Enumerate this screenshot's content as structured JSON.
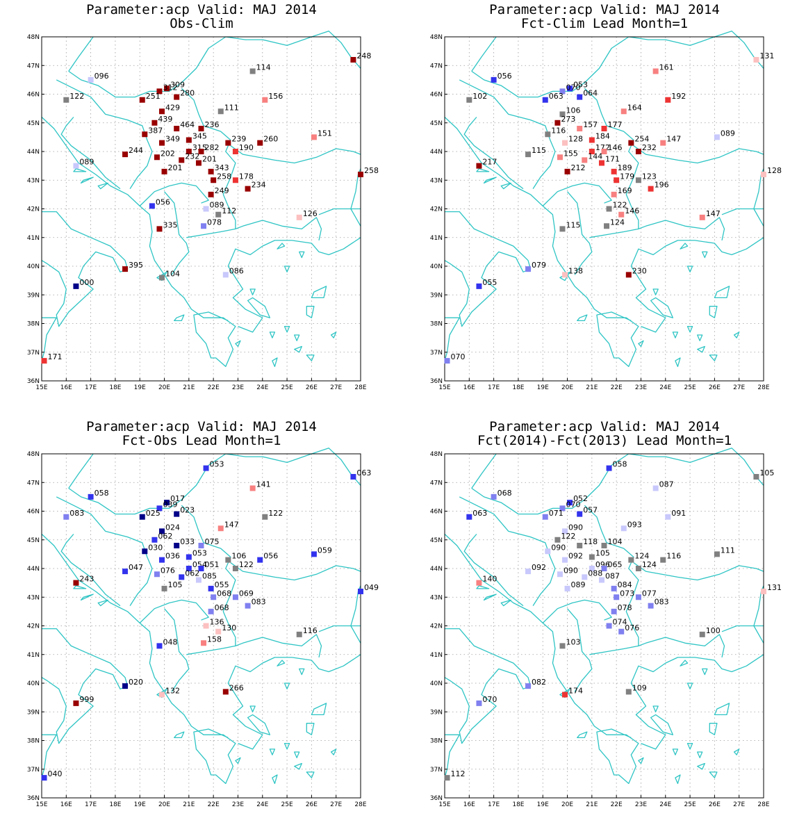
{
  "lon_ticks": [
    "15E",
    "16E",
    "17E",
    "18E",
    "19E",
    "20E",
    "21E",
    "22E",
    "23E",
    "24E",
    "25E",
    "26E",
    "27E",
    "28E"
  ],
  "lat_ticks": [
    "36N",
    "37N",
    "38N",
    "39N",
    "40N",
    "41N",
    "42N",
    "43N",
    "44N",
    "45N",
    "46N",
    "47N",
    "48N"
  ],
  "colors": {
    "coast": "#2ec4c4",
    "grid": "#9a9a9a",
    "dark_red": "#990000",
    "red": "#ee3333",
    "pink": "#f89898",
    "light_pink": "#fcc8c8",
    "gray": "#808080",
    "light_blue": "#c8c8fc",
    "mid_blue": "#8080f0",
    "blue": "#3333ee",
    "dark_blue": "#000088"
  },
  "panels": [
    {
      "title1": "Parameter:acp Valid: MAJ 2014",
      "title2": "Obs-Clim",
      "stations": [
        {
          "lon": 27.7,
          "lat": 47.2,
          "label": "248"
        },
        {
          "lon": 23.6,
          "lat": 46.8,
          "label": "114"
        },
        {
          "lon": 17.0,
          "lat": 46.5,
          "label": "096"
        },
        {
          "lon": 20.1,
          "lat": 46.2,
          "label": "309"
        },
        {
          "lon": 19.8,
          "lat": 46.1,
          "label": "312"
        },
        {
          "lon": 19.1,
          "lat": 45.8,
          "label": "251"
        },
        {
          "lon": 20.5,
          "lat": 45.9,
          "label": "280"
        },
        {
          "lon": 16.0,
          "lat": 45.8,
          "label": "122"
        },
        {
          "lon": 24.1,
          "lat": 45.8,
          "label": "156"
        },
        {
          "lon": 22.3,
          "lat": 45.4,
          "label": "111"
        },
        {
          "lon": 19.9,
          "lat": 45.4,
          "label": "429"
        },
        {
          "lon": 19.6,
          "lat": 45.0,
          "label": "439"
        },
        {
          "lon": 20.5,
          "lat": 44.8,
          "label": "464"
        },
        {
          "lon": 21.5,
          "lat": 44.8,
          "label": "236"
        },
        {
          "lon": 19.2,
          "lat": 44.6,
          "label": "387"
        },
        {
          "lon": 26.1,
          "lat": 44.5,
          "label": "151"
        },
        {
          "lon": 21.0,
          "lat": 44.4,
          "label": "345"
        },
        {
          "lon": 19.9,
          "lat": 44.3,
          "label": "349"
        },
        {
          "lon": 22.6,
          "lat": 44.3,
          "label": "239"
        },
        {
          "lon": 23.9,
          "lat": 44.3,
          "label": "260"
        },
        {
          "lon": 21.0,
          "lat": 44.0,
          "label": "315"
        },
        {
          "lon": 22.9,
          "lat": 44.0,
          "label": "190"
        },
        {
          "lon": 21.5,
          "lat": 44.0,
          "label": "282"
        },
        {
          "lon": 18.4,
          "lat": 43.9,
          "label": "244"
        },
        {
          "lon": 19.7,
          "lat": 43.8,
          "label": "202"
        },
        {
          "lon": 20.7,
          "lat": 43.7,
          "label": "232"
        },
        {
          "lon": 21.4,
          "lat": 43.6,
          "label": "201"
        },
        {
          "lon": 16.4,
          "lat": 43.5,
          "label": "089"
        },
        {
          "lon": 21.9,
          "lat": 43.3,
          "label": "343"
        },
        {
          "lon": 20.0,
          "lat": 43.3,
          "label": "201"
        },
        {
          "lon": 28.0,
          "lat": 43.2,
          "label": "258"
        },
        {
          "lon": 22.9,
          "lat": 43.0,
          "label": "178"
        },
        {
          "lon": 22.0,
          "lat": 43.0,
          "label": "258"
        },
        {
          "lon": 23.4,
          "lat": 42.7,
          "label": "234"
        },
        {
          "lon": 21.9,
          "lat": 42.5,
          "label": "249"
        },
        {
          "lon": 19.5,
          "lat": 42.1,
          "label": "056"
        },
        {
          "lon": 21.7,
          "lat": 42.0,
          "label": "089"
        },
        {
          "lon": 22.2,
          "lat": 41.8,
          "label": "112"
        },
        {
          "lon": 25.5,
          "lat": 41.7,
          "label": "126"
        },
        {
          "lon": 19.8,
          "lat": 41.3,
          "label": "335"
        },
        {
          "lon": 21.6,
          "lat": 41.4,
          "label": "078"
        },
        {
          "lon": 18.4,
          "lat": 39.9,
          "label": "395"
        },
        {
          "lon": 19.9,
          "lat": 39.6,
          "label": "104"
        },
        {
          "lon": 22.5,
          "lat": 39.7,
          "label": "086"
        },
        {
          "lon": 16.4,
          "lat": 39.3,
          "label": "000"
        },
        {
          "lon": 15.1,
          "lat": 36.7,
          "label": "171"
        }
      ]
    },
    {
      "title1": "Parameter:acp Valid: MAJ 2014",
      "title2": "Fct-Clim Lead Month=1",
      "stations": [
        {
          "lon": 27.7,
          "lat": 47.2,
          "label": "131"
        },
        {
          "lon": 23.6,
          "lat": 46.8,
          "label": "161"
        },
        {
          "lon": 17.0,
          "lat": 46.5,
          "label": "056"
        },
        {
          "lon": 20.1,
          "lat": 46.2,
          "label": "053"
        },
        {
          "lon": 19.8,
          "lat": 46.1,
          "label": "070"
        },
        {
          "lon": 16.0,
          "lat": 45.8,
          "label": "102"
        },
        {
          "lon": 19.1,
          "lat": 45.8,
          "label": "063"
        },
        {
          "lon": 20.5,
          "lat": 45.9,
          "label": "064"
        },
        {
          "lon": 24.1,
          "lat": 45.8,
          "label": "192"
        },
        {
          "lon": 22.3,
          "lat": 45.4,
          "label": "164"
        },
        {
          "lon": 19.8,
          "lat": 45.3,
          "label": "106"
        },
        {
          "lon": 19.6,
          "lat": 45.0,
          "label": "273"
        },
        {
          "lon": 20.5,
          "lat": 44.8,
          "label": "157"
        },
        {
          "lon": 21.5,
          "lat": 44.8,
          "label": "177"
        },
        {
          "lon": 19.2,
          "lat": 44.6,
          "label": "116"
        },
        {
          "lon": 26.1,
          "lat": 44.5,
          "label": "089"
        },
        {
          "lon": 21.0,
          "lat": 44.4,
          "label": "184"
        },
        {
          "lon": 19.9,
          "lat": 44.3,
          "label": "128"
        },
        {
          "lon": 22.6,
          "lat": 44.3,
          "label": "254"
        },
        {
          "lon": 23.9,
          "lat": 44.3,
          "label": "147"
        },
        {
          "lon": 21.0,
          "lat": 44.0,
          "label": "172"
        },
        {
          "lon": 22.9,
          "lat": 44.0,
          "label": "232"
        },
        {
          "lon": 21.5,
          "lat": 44.0,
          "label": "146"
        },
        {
          "lon": 18.4,
          "lat": 43.9,
          "label": "115"
        },
        {
          "lon": 19.7,
          "lat": 43.8,
          "label": "155"
        },
        {
          "lon": 20.7,
          "lat": 43.7,
          "label": "144"
        },
        {
          "lon": 21.4,
          "lat": 43.6,
          "label": "171"
        },
        {
          "lon": 16.4,
          "lat": 43.5,
          "label": "217"
        },
        {
          "lon": 21.9,
          "lat": 43.3,
          "label": "189"
        },
        {
          "lon": 20.0,
          "lat": 43.3,
          "label": "212"
        },
        {
          "lon": 28.0,
          "lat": 43.2,
          "label": "128"
        },
        {
          "lon": 22.9,
          "lat": 43.0,
          "label": "123"
        },
        {
          "lon": 22.0,
          "lat": 43.0,
          "label": "179"
        },
        {
          "lon": 23.4,
          "lat": 42.7,
          "label": "196"
        },
        {
          "lon": 21.9,
          "lat": 42.5,
          "label": "169"
        },
        {
          "lon": 21.7,
          "lat": 42.0,
          "label": "122"
        },
        {
          "lon": 22.2,
          "lat": 41.8,
          "label": "146"
        },
        {
          "lon": 25.5,
          "lat": 41.7,
          "label": "147"
        },
        {
          "lon": 19.8,
          "lat": 41.3,
          "label": "115"
        },
        {
          "lon": 21.6,
          "lat": 41.4,
          "label": "124"
        },
        {
          "lon": 18.4,
          "lat": 39.9,
          "label": "079"
        },
        {
          "lon": 19.9,
          "lat": 39.7,
          "label": "138"
        },
        {
          "lon": 22.5,
          "lat": 39.7,
          "label": "230"
        },
        {
          "lon": 16.4,
          "lat": 39.3,
          "label": "055"
        },
        {
          "lon": 15.1,
          "lat": 36.7,
          "label": "070"
        }
      ]
    },
    {
      "title1": "Parameter:acp Valid: MAJ 2014",
      "title2": "Fct-Obs Lead Month=1",
      "stations": [
        {
          "lon": 21.7,
          "lat": 47.5,
          "label": "053"
        },
        {
          "lon": 27.7,
          "lat": 47.2,
          "label": "063"
        },
        {
          "lon": 23.6,
          "lat": 46.8,
          "label": "141"
        },
        {
          "lon": 17.0,
          "lat": 46.5,
          "label": "058"
        },
        {
          "lon": 20.1,
          "lat": 46.3,
          "label": "017"
        },
        {
          "lon": 19.8,
          "lat": 46.1,
          "label": "039"
        },
        {
          "lon": 16.0,
          "lat": 45.8,
          "label": "083"
        },
        {
          "lon": 19.1,
          "lat": 45.8,
          "label": "025"
        },
        {
          "lon": 20.5,
          "lat": 45.9,
          "label": "023"
        },
        {
          "lon": 24.1,
          "lat": 45.8,
          "label": "122"
        },
        {
          "lon": 22.3,
          "lat": 45.4,
          "label": "147"
        },
        {
          "lon": 19.9,
          "lat": 45.3,
          "label": "024"
        },
        {
          "lon": 19.6,
          "lat": 45.0,
          "label": "062"
        },
        {
          "lon": 20.5,
          "lat": 44.8,
          "label": "033"
        },
        {
          "lon": 21.5,
          "lat": 44.8,
          "label": "075"
        },
        {
          "lon": 19.2,
          "lat": 44.6,
          "label": "030"
        },
        {
          "lon": 26.1,
          "lat": 44.5,
          "label": "059"
        },
        {
          "lon": 21.0,
          "lat": 44.4,
          "label": "053"
        },
        {
          "lon": 19.9,
          "lat": 44.3,
          "label": "036"
        },
        {
          "lon": 22.6,
          "lat": 44.3,
          "label": "106"
        },
        {
          "lon": 23.9,
          "lat": 44.3,
          "label": "056"
        },
        {
          "lon": 21.0,
          "lat": 44.0,
          "label": "054"
        },
        {
          "lon": 22.9,
          "lat": 44.0,
          "label": "122"
        },
        {
          "lon": 21.5,
          "lat": 44.0,
          "label": "051"
        },
        {
          "lon": 18.4,
          "lat": 43.9,
          "label": "047"
        },
        {
          "lon": 19.7,
          "lat": 43.8,
          "label": "076"
        },
        {
          "lon": 20.7,
          "lat": 43.7,
          "label": "062"
        },
        {
          "lon": 21.4,
          "lat": 43.6,
          "label": "085"
        },
        {
          "lon": 16.4,
          "lat": 43.5,
          "label": "243"
        },
        {
          "lon": 21.9,
          "lat": 43.3,
          "label": "055"
        },
        {
          "lon": 20.0,
          "lat": 43.3,
          "label": "105"
        },
        {
          "lon": 28.0,
          "lat": 43.2,
          "label": "049"
        },
        {
          "lon": 22.9,
          "lat": 43.0,
          "label": "069"
        },
        {
          "lon": 22.0,
          "lat": 43.0,
          "label": "068"
        },
        {
          "lon": 23.4,
          "lat": 42.7,
          "label": "083"
        },
        {
          "lon": 21.9,
          "lat": 42.5,
          "label": "068"
        },
        {
          "lon": 21.7,
          "lat": 42.0,
          "label": "136"
        },
        {
          "lon": 22.2,
          "lat": 41.8,
          "label": "130"
        },
        {
          "lon": 25.5,
          "lat": 41.7,
          "label": "116"
        },
        {
          "lon": 19.8,
          "lat": 41.3,
          "label": "048"
        },
        {
          "lon": 21.6,
          "lat": 41.4,
          "label": "158"
        },
        {
          "lon": 18.4,
          "lat": 39.9,
          "label": "020"
        },
        {
          "lon": 19.9,
          "lat": 39.6,
          "label": "132"
        },
        {
          "lon": 22.5,
          "lat": 39.7,
          "label": "266"
        },
        {
          "lon": 16.4,
          "lat": 39.3,
          "label": "999"
        },
        {
          "lon": 15.1,
          "lat": 36.7,
          "label": "040"
        }
      ]
    },
    {
      "title1": "Parameter:acp Valid: MAJ 2014",
      "title2": "Fct(2014)-Fct(2013) Lead Month=1",
      "stations": [
        {
          "lon": 21.7,
          "lat": 47.5,
          "label": "058"
        },
        {
          "lon": 27.7,
          "lat": 47.2,
          "label": "105"
        },
        {
          "lon": 23.6,
          "lat": 46.8,
          "label": "087"
        },
        {
          "lon": 17.0,
          "lat": 46.5,
          "label": "068"
        },
        {
          "lon": 20.1,
          "lat": 46.3,
          "label": "052"
        },
        {
          "lon": 19.8,
          "lat": 46.1,
          "label": "070"
        },
        {
          "lon": 16.0,
          "lat": 45.8,
          "label": "063"
        },
        {
          "lon": 19.1,
          "lat": 45.8,
          "label": "071"
        },
        {
          "lon": 20.5,
          "lat": 45.9,
          "label": "057"
        },
        {
          "lon": 24.1,
          "lat": 45.8,
          "label": "091"
        },
        {
          "lon": 22.3,
          "lat": 45.4,
          "label": "093"
        },
        {
          "lon": 19.9,
          "lat": 45.3,
          "label": "090"
        },
        {
          "lon": 19.6,
          "lat": 45.0,
          "label": "122"
        },
        {
          "lon": 20.5,
          "lat": 44.8,
          "label": "118"
        },
        {
          "lon": 21.5,
          "lat": 44.8,
          "label": "104"
        },
        {
          "lon": 19.2,
          "lat": 44.6,
          "label": "090"
        },
        {
          "lon": 26.1,
          "lat": 44.5,
          "label": "111"
        },
        {
          "lon": 21.0,
          "lat": 44.4,
          "label": "105"
        },
        {
          "lon": 19.9,
          "lat": 44.3,
          "label": "092"
        },
        {
          "lon": 22.6,
          "lat": 44.3,
          "label": "124"
        },
        {
          "lon": 23.9,
          "lat": 44.3,
          "label": "116"
        },
        {
          "lon": 21.0,
          "lat": 44.0,
          "label": "096"
        },
        {
          "lon": 22.9,
          "lat": 44.0,
          "label": "124"
        },
        {
          "lon": 21.5,
          "lat": 44.0,
          "label": "065"
        },
        {
          "lon": 18.4,
          "lat": 43.9,
          "label": "092"
        },
        {
          "lon": 19.7,
          "lat": 43.8,
          "label": "090"
        },
        {
          "lon": 20.7,
          "lat": 43.7,
          "label": "088"
        },
        {
          "lon": 21.4,
          "lat": 43.6,
          "label": "087"
        },
        {
          "lon": 16.4,
          "lat": 43.5,
          "label": "140"
        },
        {
          "lon": 21.9,
          "lat": 43.3,
          "label": "084"
        },
        {
          "lon": 20.0,
          "lat": 43.3,
          "label": "089"
        },
        {
          "lon": 28.0,
          "lat": 43.2,
          "label": "131"
        },
        {
          "lon": 22.9,
          "lat": 43.0,
          "label": "077"
        },
        {
          "lon": 22.0,
          "lat": 43.0,
          "label": "073"
        },
        {
          "lon": 23.4,
          "lat": 42.7,
          "label": "083"
        },
        {
          "lon": 21.9,
          "lat": 42.5,
          "label": "078"
        },
        {
          "lon": 21.7,
          "lat": 42.0,
          "label": "074"
        },
        {
          "lon": 22.2,
          "lat": 41.8,
          "label": "076"
        },
        {
          "lon": 25.5,
          "lat": 41.7,
          "label": "100"
        },
        {
          "lon": 19.8,
          "lat": 41.3,
          "label": "103"
        },
        {
          "lon": 18.4,
          "lat": 39.9,
          "label": "082"
        },
        {
          "lon": 19.9,
          "lat": 39.6,
          "label": "174"
        },
        {
          "lon": 22.5,
          "lat": 39.7,
          "label": "109"
        },
        {
          "lon": 16.4,
          "lat": 39.3,
          "label": "070"
        },
        {
          "lon": 15.1,
          "lat": 36.7,
          "label": "112"
        }
      ]
    }
  ]
}
